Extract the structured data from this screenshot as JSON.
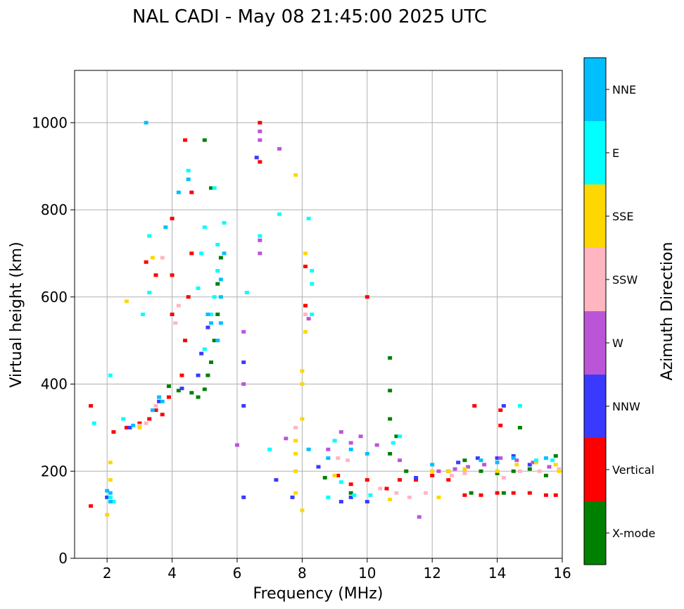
{
  "chart_data": {
    "type": "scatter",
    "title": "NAL CADI - May 08 21:45:00 2025 UTC",
    "xlabel": "Frequency (MHz)",
    "ylabel": "Virtual height (km)",
    "xlim": [
      1.0,
      16.0
    ],
    "ylim": [
      0,
      1120
    ],
    "xticks": [
      2,
      4,
      6,
      8,
      10,
      12,
      14,
      16
    ],
    "yticks": [
      0,
      200,
      400,
      600,
      800,
      1000
    ],
    "grid": true,
    "colorbar": {
      "label": "Azimuth Direction",
      "categories": [
        {
          "label": "X-mode",
          "color": "#008000"
        },
        {
          "label": "Vertical",
          "color": "#ff0000"
        },
        {
          "label": "NNW",
          "color": "#3a3aff"
        },
        {
          "label": "W",
          "color": "#bb55d8"
        },
        {
          "label": "SSW",
          "color": "#ffb6c1"
        },
        {
          "label": "SSE",
          "color": "#ffd700"
        },
        {
          "label": "E",
          "color": "#00ffff"
        },
        {
          "label": "NNE",
          "color": "#00bfff"
        }
      ]
    },
    "series": [
      {
        "name": "X-mode",
        "points": [
          [
            3.9,
            395
          ],
          [
            4.2,
            385
          ],
          [
            4.6,
            380
          ],
          [
            4.8,
            370
          ],
          [
            5.0,
            388
          ],
          [
            5.1,
            420
          ],
          [
            5.2,
            450
          ],
          [
            5.3,
            500
          ],
          [
            5.4,
            560
          ],
          [
            5.4,
            630
          ],
          [
            5.5,
            690
          ],
          [
            5.2,
            850
          ],
          [
            5.0,
            960
          ],
          [
            10.7,
            460
          ],
          [
            10.7,
            385
          ],
          [
            10.7,
            320
          ],
          [
            10.7,
            240
          ],
          [
            10.9,
            280
          ],
          [
            11.2,
            200
          ],
          [
            12.5,
            200
          ],
          [
            13.0,
            225
          ],
          [
            13.5,
            200
          ],
          [
            14.0,
            195
          ],
          [
            14.5,
            200
          ],
          [
            15.0,
            205
          ],
          [
            15.5,
            190
          ],
          [
            15.8,
            235
          ],
          [
            13.2,
            150
          ],
          [
            14.2,
            150
          ],
          [
            14.7,
            300
          ],
          [
            8.7,
            185
          ],
          [
            9.5,
            150
          ]
        ]
      },
      {
        "name": "Vertical",
        "points": [
          [
            1.5,
            350
          ],
          [
            1.5,
            120
          ],
          [
            2.2,
            290
          ],
          [
            2.6,
            300
          ],
          [
            3.0,
            310
          ],
          [
            3.3,
            320
          ],
          [
            3.5,
            340
          ],
          [
            3.7,
            330
          ],
          [
            3.9,
            370
          ],
          [
            4.0,
            560
          ],
          [
            4.0,
            650
          ],
          [
            4.0,
            780
          ],
          [
            4.3,
            420
          ],
          [
            4.4,
            500
          ],
          [
            4.5,
            600
          ],
          [
            4.6,
            700
          ],
          [
            4.6,
            840
          ],
          [
            3.5,
            650
          ],
          [
            3.2,
            680
          ],
          [
            6.7,
            1000
          ],
          [
            6.7,
            910
          ],
          [
            8.1,
            580
          ],
          [
            8.1,
            670
          ],
          [
            10.0,
            600
          ],
          [
            9.1,
            190
          ],
          [
            9.5,
            170
          ],
          [
            10.0,
            180
          ],
          [
            10.6,
            160
          ],
          [
            11.0,
            180
          ],
          [
            11.5,
            180
          ],
          [
            12.0,
            190
          ],
          [
            12.5,
            180
          ],
          [
            13.0,
            145
          ],
          [
            13.5,
            145
          ],
          [
            14.0,
            150
          ],
          [
            14.5,
            150
          ],
          [
            15.0,
            150
          ],
          [
            15.5,
            145
          ],
          [
            15.8,
            145
          ],
          [
            14.1,
            340
          ],
          [
            14.1,
            305
          ],
          [
            13.3,
            350
          ],
          [
            4.4,
            960
          ]
        ]
      },
      {
        "name": "NNW",
        "points": [
          [
            2.0,
            140
          ],
          [
            2.7,
            300
          ],
          [
            3.6,
            360
          ],
          [
            4.3,
            390
          ],
          [
            4.8,
            420
          ],
          [
            4.9,
            470
          ],
          [
            5.1,
            530
          ],
          [
            6.2,
            450
          ],
          [
            6.2,
            350
          ],
          [
            6.2,
            140
          ],
          [
            6.6,
            920
          ],
          [
            7.7,
            140
          ],
          [
            8.5,
            210
          ],
          [
            9.2,
            130
          ],
          [
            9.5,
            140
          ],
          [
            10.0,
            130
          ],
          [
            12.8,
            220
          ],
          [
            13.4,
            230
          ],
          [
            14.0,
            230
          ],
          [
            14.2,
            350
          ],
          [
            14.5,
            235
          ],
          [
            15.0,
            215
          ],
          [
            11.5,
            185
          ],
          [
            7.2,
            180
          ]
        ]
      },
      {
        "name": "W",
        "points": [
          [
            6.7,
            980
          ],
          [
            6.7,
            960
          ],
          [
            6.7,
            700
          ],
          [
            6.2,
            400
          ],
          [
            6.2,
            520
          ],
          [
            6.0,
            260
          ],
          [
            7.3,
            940
          ],
          [
            8.2,
            550
          ],
          [
            8.8,
            250
          ],
          [
            9.0,
            270
          ],
          [
            9.2,
            290
          ],
          [
            9.5,
            265
          ],
          [
            9.8,
            280
          ],
          [
            10.3,
            260
          ],
          [
            11.0,
            225
          ],
          [
            12.2,
            200
          ],
          [
            12.7,
            205
          ],
          [
            13.1,
            210
          ],
          [
            13.6,
            215
          ],
          [
            14.1,
            230
          ],
          [
            14.6,
            225
          ],
          [
            15.1,
            220
          ],
          [
            15.6,
            210
          ],
          [
            11.6,
            95
          ],
          [
            7.5,
            275
          ],
          [
            6.7,
            730
          ]
        ]
      },
      {
        "name": "SSW",
        "points": [
          [
            3.0,
            305
          ],
          [
            3.2,
            310
          ],
          [
            3.5,
            350
          ],
          [
            3.7,
            690
          ],
          [
            4.1,
            540
          ],
          [
            4.2,
            580
          ],
          [
            5.4,
            660
          ],
          [
            8.1,
            560
          ],
          [
            9.1,
            230
          ],
          [
            9.4,
            225
          ],
          [
            10.4,
            160
          ],
          [
            10.9,
            150
          ],
          [
            11.3,
            140
          ],
          [
            11.8,
            150
          ],
          [
            12.6,
            190
          ],
          [
            13.0,
            195
          ],
          [
            14.2,
            185
          ],
          [
            14.7,
            200
          ],
          [
            15.3,
            200
          ],
          [
            15.9,
            205
          ],
          [
            7.8,
            300
          ]
        ]
      },
      {
        "name": "SSE",
        "points": [
          [
            2.1,
            180
          ],
          [
            2.1,
            220
          ],
          [
            2.0,
            100
          ],
          [
            2.6,
            590
          ],
          [
            3.4,
            690
          ],
          [
            3.0,
            300
          ],
          [
            7.8,
            880
          ],
          [
            7.8,
            270
          ],
          [
            7.8,
            200
          ],
          [
            7.8,
            150
          ],
          [
            7.8,
            240
          ],
          [
            8.0,
            400
          ],
          [
            8.0,
            430
          ],
          [
            8.0,
            320
          ],
          [
            8.0,
            110
          ],
          [
            8.1,
            700
          ],
          [
            8.1,
            520
          ],
          [
            10.7,
            135
          ],
          [
            12.0,
            200
          ],
          [
            12.5,
            200
          ],
          [
            13.0,
            205
          ],
          [
            14.0,
            200
          ],
          [
            14.6,
            215
          ],
          [
            15.2,
            220
          ],
          [
            15.8,
            215
          ],
          [
            15.9,
            200
          ],
          [
            9.0,
            190
          ],
          [
            12.2,
            140
          ]
        ]
      },
      {
        "name": "E",
        "points": [
          [
            1.6,
            310
          ],
          [
            2.1,
            420
          ],
          [
            2.5,
            320
          ],
          [
            3.3,
            740
          ],
          [
            3.1,
            560
          ],
          [
            3.3,
            610
          ],
          [
            4.5,
            890
          ],
          [
            4.8,
            620
          ],
          [
            4.9,
            700
          ],
          [
            5.0,
            760
          ],
          [
            5.2,
            560
          ],
          [
            5.3,
            600
          ],
          [
            5.4,
            660
          ],
          [
            5.4,
            720
          ],
          [
            5.0,
            480
          ],
          [
            5.3,
            850
          ],
          [
            5.6,
            770
          ],
          [
            6.3,
            610
          ],
          [
            6.7,
            740
          ],
          [
            8.2,
            780
          ],
          [
            8.3,
            660
          ],
          [
            8.3,
            630
          ],
          [
            8.3,
            560
          ],
          [
            7.3,
            790
          ],
          [
            8.8,
            140
          ],
          [
            9.2,
            175
          ],
          [
            9.6,
            145
          ],
          [
            10.1,
            145
          ],
          [
            10.8,
            265
          ],
          [
            11.0,
            280
          ],
          [
            14.7,
            350
          ],
          [
            15.2,
            225
          ],
          [
            15.7,
            225
          ],
          [
            9.0,
            270
          ],
          [
            7.0,
            250
          ],
          [
            2.1,
            140
          ],
          [
            2.2,
            130
          ]
        ]
      },
      {
        "name": "NNE",
        "points": [
          [
            2.1,
            150
          ],
          [
            2.1,
            130
          ],
          [
            2.8,
            305
          ],
          [
            3.4,
            340
          ],
          [
            3.6,
            370
          ],
          [
            3.7,
            360
          ],
          [
            3.8,
            760
          ],
          [
            4.2,
            840
          ],
          [
            4.5,
            870
          ],
          [
            5.4,
            500
          ],
          [
            5.5,
            540
          ],
          [
            5.5,
            600
          ],
          [
            5.5,
            640
          ],
          [
            5.6,
            700
          ],
          [
            5.1,
            560
          ],
          [
            5.2,
            540
          ],
          [
            8.2,
            250
          ],
          [
            8.8,
            230
          ],
          [
            9.5,
            250
          ],
          [
            10.0,
            240
          ],
          [
            12.0,
            215
          ],
          [
            13.5,
            225
          ],
          [
            14.0,
            220
          ],
          [
            14.5,
            230
          ],
          [
            15.5,
            230
          ],
          [
            3.2,
            1000
          ],
          [
            2.0,
            155
          ]
        ]
      }
    ]
  }
}
